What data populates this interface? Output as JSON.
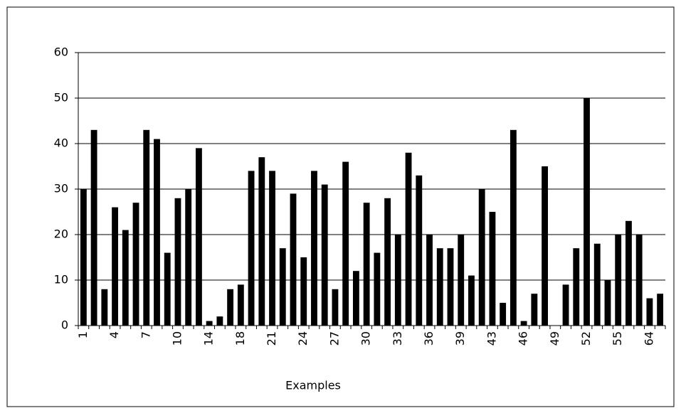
{
  "chart_data": {
    "type": "bar",
    "x_label": "Examples",
    "categories": [
      "1",
      null,
      null,
      "4",
      null,
      null,
      "7",
      null,
      null,
      "10",
      null,
      null,
      "14",
      null,
      null,
      "18",
      null,
      null,
      "21",
      null,
      null,
      "24",
      null,
      null,
      "27",
      null,
      null,
      "30",
      null,
      null,
      "33",
      null,
      null,
      "36",
      null,
      null,
      "39",
      null,
      null,
      "43",
      null,
      null,
      "46",
      null,
      null,
      "49",
      null,
      null,
      "52",
      null,
      null,
      "55",
      null,
      null,
      "64",
      null
    ],
    "values": [
      30,
      43,
      8,
      26,
      21,
      27,
      43,
      41,
      16,
      28,
      30,
      39,
      1,
      2,
      8,
      9,
      34,
      37,
      34,
      17,
      29,
      15,
      34,
      31,
      8,
      36,
      12,
      27,
      16,
      28,
      20,
      38,
      33,
      20,
      17,
      17,
      20,
      11,
      30,
      25,
      5,
      43,
      1,
      7,
      35,
      0,
      9,
      17,
      50,
      18,
      10,
      20,
      23,
      20,
      6,
      7
    ],
    "color": "#000000",
    "ylim": [
      0,
      60
    ],
    "yticks": [
      0,
      10,
      20,
      30,
      40,
      50,
      60
    ],
    "grid": true
  }
}
